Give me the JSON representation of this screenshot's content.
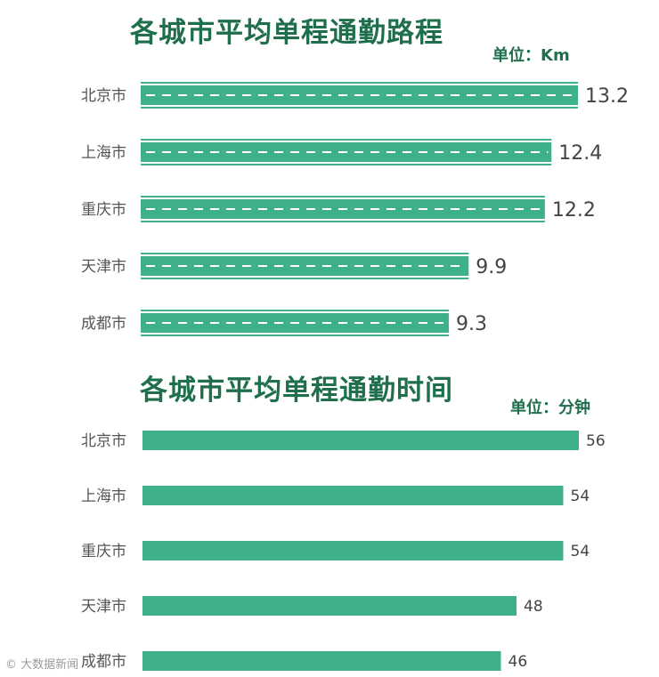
{
  "chart_data": [
    {
      "type": "bar",
      "orientation": "horizontal",
      "title": "各城市平均单程通勤路程",
      "unit_label": "单位：Km",
      "categories": [
        "北京市",
        "上海市",
        "重庆市",
        "天津市",
        "成都市"
      ],
      "values": [
        13.2,
        12.4,
        12.2,
        9.9,
        9.3
      ],
      "value_labels": [
        "13.2",
        "12.4",
        "12.2",
        "9.9",
        "9.3"
      ],
      "style": "road",
      "bar_color": "#3fb08c"
    },
    {
      "type": "bar",
      "orientation": "horizontal",
      "title": "各城市平均单程通勤时间",
      "unit_label": "单位：分钟",
      "categories": [
        "北京市",
        "上海市",
        "重庆市",
        "天津市",
        "成都市"
      ],
      "values": [
        56,
        54,
        54,
        48,
        46
      ],
      "value_labels": [
        "56",
        "54",
        "54",
        "48",
        "46"
      ],
      "style": "solid",
      "bar_color": "#3fb08c"
    }
  ],
  "watermark": "© 大数据新闻"
}
